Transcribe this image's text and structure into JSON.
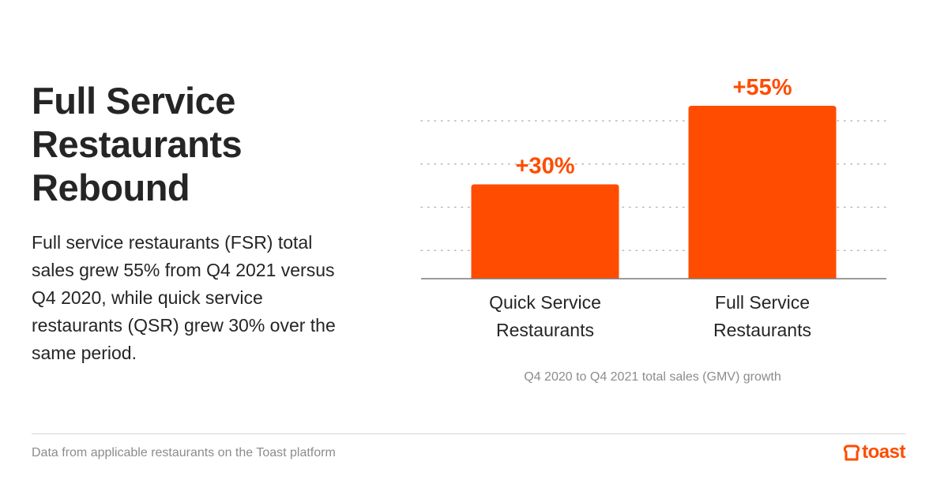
{
  "headline": {
    "lines": [
      "Full Service",
      "Restaurants",
      "Rebound"
    ]
  },
  "description": "Full service restaurants (FSR) total sales grew 55% from Q4 2021 versus Q4 2020, while quick service restaurants (QSR) grew 30% over the same period.",
  "footer": {
    "note": "Data from applicable restaurants on the Toast platform",
    "brand": "toast",
    "brand_icon": "toast-logo-icon"
  },
  "colors": {
    "accent": "#ff4c00",
    "text": "#252525",
    "muted": "#8c8c8c",
    "grid": "#b8b8b8"
  },
  "chart_data": {
    "type": "bar",
    "categories": [
      [
        "Quick Service",
        "Restaurants"
      ],
      [
        "Full Service",
        "Restaurants"
      ]
    ],
    "values": [
      30,
      55
    ],
    "data_labels": [
      "+30%",
      "+55%"
    ],
    "unit": "%",
    "ylim": [
      0,
      55
    ],
    "grid": true,
    "grid_style": "dotted",
    "caption": "Q4 2020 to Q4 2021 total sales (GMV) growth",
    "xlabel": "",
    "ylabel": ""
  }
}
